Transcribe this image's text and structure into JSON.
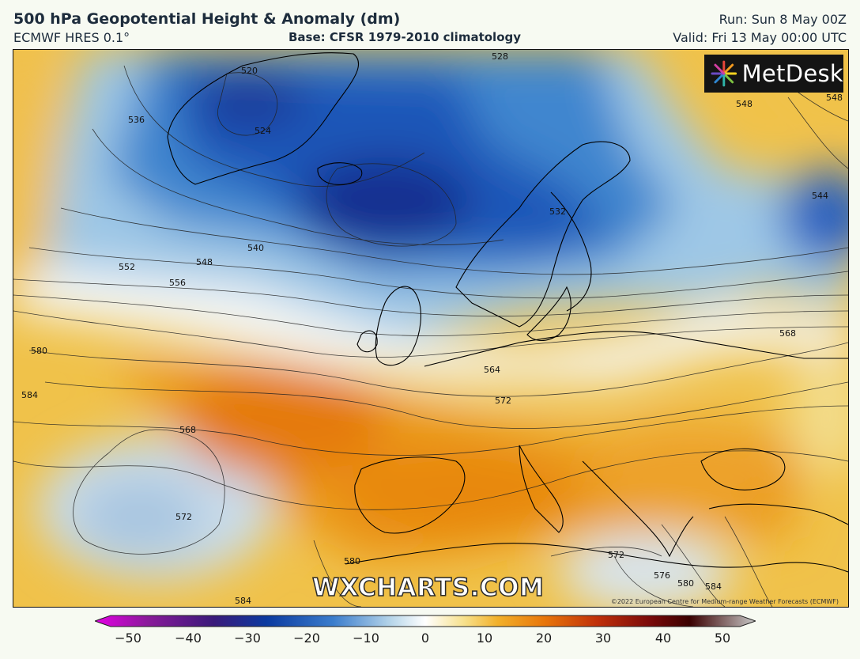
{
  "header": {
    "title": "500 hPa Geopotential Height & Anomaly (dm)",
    "model": "ECMWF HRES 0.1°",
    "base": "Base: CFSR 1979-2010 climatology",
    "run": "Run: Sun 8 May 00Z",
    "valid": "Valid: Fri 13 May 00:00 UTC"
  },
  "logo": {
    "text": "MetDesk",
    "icon": "metdesk-burst-icon"
  },
  "watermark": "WXCHARTS.COM",
  "copyright": "©2022 European Centre for Medium-range Weather Forecasts (ECMWF)",
  "contour_labels": [
    "520",
    "524",
    "528",
    "532",
    "536",
    "540",
    "544",
    "548",
    "552",
    "556",
    "564",
    "568",
    "572",
    "576",
    "580",
    "584"
  ],
  "colorbar": {
    "ticks": [
      "−50",
      "−40",
      "−30",
      "−20",
      "−10",
      "0",
      "10",
      "20",
      "30",
      "40",
      "50"
    ],
    "colors": [
      "#e400e4",
      "#8a1a9a",
      "#3a1a7a",
      "#0b3aa0",
      "#3a7ccc",
      "#b9d7ea",
      "#ffffff",
      "#f7e08a",
      "#f2b02a",
      "#e8760a",
      "#c0300a",
      "#7a0a0a",
      "#3a0000",
      "#c8c8c8"
    ]
  }
}
